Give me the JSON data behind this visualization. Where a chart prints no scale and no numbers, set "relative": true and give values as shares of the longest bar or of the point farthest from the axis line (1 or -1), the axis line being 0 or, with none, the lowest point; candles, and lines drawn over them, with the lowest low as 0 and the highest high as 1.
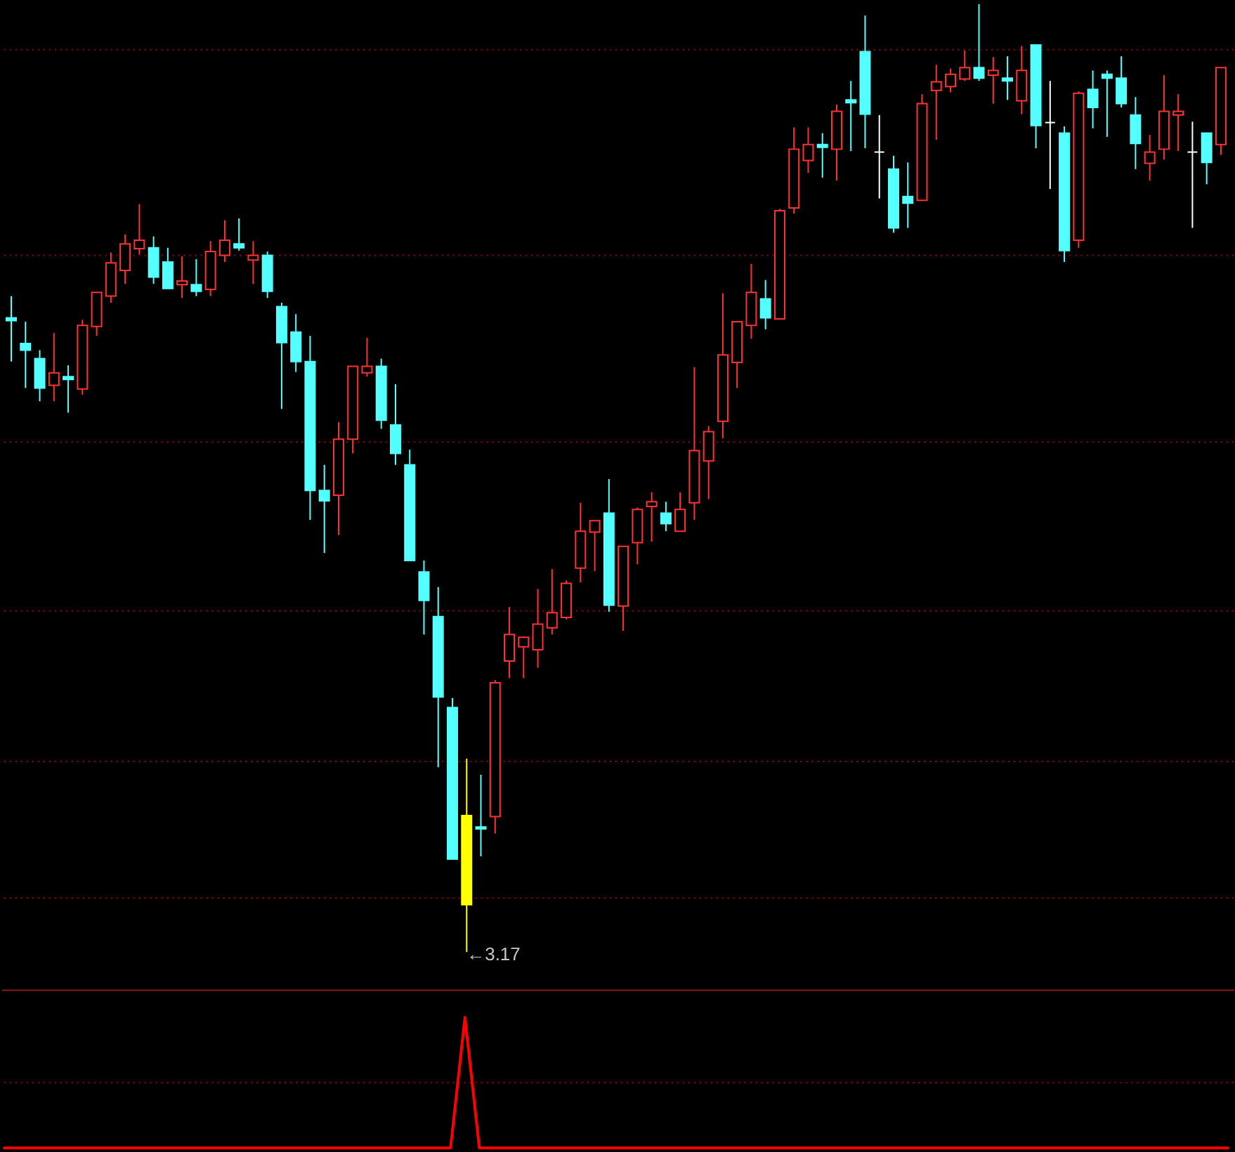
{
  "chart_data": [
    {
      "type": "candlestick",
      "relative": true,
      "categories": [
        null,
        null,
        null,
        null,
        null,
        null,
        null,
        null,
        null,
        null,
        null,
        null,
        null,
        null,
        null,
        null,
        null,
        null,
        null,
        null,
        null,
        null,
        null,
        null,
        null,
        null,
        null,
        null,
        null,
        null,
        null,
        null,
        null,
        null,
        null,
        null,
        null,
        null,
        null,
        null,
        null,
        null,
        null,
        null,
        null,
        null,
        null,
        null,
        null,
        null,
        null,
        null,
        null,
        null,
        null,
        null,
        null,
        null,
        null,
        null,
        null,
        null,
        null,
        null,
        null,
        null,
        null,
        null,
        null,
        null,
        null,
        null,
        null,
        null,
        null,
        null,
        null,
        null,
        null,
        null,
        null,
        null,
        null,
        null,
        null,
        null
      ],
      "ohlc": [
        [
          0.669,
          0.692,
          0.623,
          0.666
        ],
        [
          0.642,
          0.665,
          0.595,
          0.635
        ],
        [
          0.626,
          0.635,
          0.581,
          0.595
        ],
        [
          0.598,
          0.653,
          0.581,
          0.611
        ],
        [
          0.607,
          0.619,
          0.569,
          0.604
        ],
        [
          0.594,
          0.667,
          0.588,
          0.661
        ],
        [
          0.66,
          0.696,
          0.65,
          0.696
        ],
        [
          0.692,
          0.738,
          0.685,
          0.727
        ],
        [
          0.719,
          0.757,
          0.705,
          0.747
        ],
        [
          0.742,
          0.789,
          0.736,
          0.751
        ],
        [
          0.743,
          0.755,
          0.705,
          0.712
        ],
        [
          0.728,
          0.743,
          0.7,
          0.7
        ],
        [
          0.704,
          0.734,
          0.69,
          0.708
        ],
        [
          0.704,
          0.731,
          0.692,
          0.697
        ],
        [
          0.699,
          0.75,
          0.692,
          0.739
        ],
        [
          0.735,
          0.772,
          0.728,
          0.751
        ],
        [
          0.747,
          0.774,
          0.74,
          0.743
        ],
        [
          0.73,
          0.75,
          0.705,
          0.735
        ],
        [
          0.735,
          0.739,
          0.69,
          0.697
        ],
        [
          0.681,
          0.685,
          0.573,
          0.643
        ],
        [
          0.654,
          0.673,
          0.612,
          0.623
        ],
        [
          0.623,
          0.65,
          0.456,
          0.487
        ],
        [
          0.487,
          0.514,
          0.421,
          0.476
        ],
        [
          0.482,
          0.559,
          0.44,
          0.541
        ],
        [
          0.541,
          0.618,
          0.526,
          0.618
        ],
        [
          0.611,
          0.648,
          0.607,
          0.618
        ],
        [
          0.618,
          0.626,
          0.552,
          0.561
        ],
        [
          0.556,
          0.599,
          0.514,
          0.526
        ],
        [
          0.514,
          0.53,
          0.413,
          0.413
        ],
        [
          0.401,
          0.413,
          0.335,
          0.371
        ],
        [
          0.354,
          0.385,
          0.195,
          0.269
        ],
        [
          0.258,
          0.268,
          0.098,
          0.098
        ],
        [
          0.144,
          0.204,
          0,
          0.05
        ],
        [
          0.132,
          0.187,
          0.101,
          0.13
        ],
        [
          0.143,
          0.287,
          0.125,
          0.284
        ],
        [
          0.307,
          0.364,
          0.289,
          0.335
        ],
        [
          0.322,
          0.333,
          0.289,
          0.332
        ],
        [
          0.319,
          0.383,
          0.3,
          0.346
        ],
        [
          0.342,
          0.404,
          0.335,
          0.358
        ],
        [
          0.353,
          0.392,
          0.351,
          0.389
        ],
        [
          0.405,
          0.474,
          0.39,
          0.444
        ],
        [
          0.443,
          0.455,
          0.402,
          0.455
        ],
        [
          0.463,
          0.499,
          0.359,
          0.366
        ],
        [
          0.365,
          0.428,
          0.339,
          0.428
        ],
        [
          0.432,
          0.469,
          0.409,
          0.467
        ],
        [
          0.47,
          0.485,
          0.433,
          0.475
        ],
        [
          0.463,
          0.475,
          0.444,
          0.452
        ],
        [
          0.444,
          0.485,
          0.444,
          0.467
        ],
        [
          0.474,
          0.617,
          0.456,
          0.529
        ],
        [
          0.518,
          0.555,
          0.478,
          0.549
        ],
        [
          0.56,
          0.695,
          0.542,
          0.63
        ],
        [
          0.622,
          0.665,
          0.595,
          0.665
        ],
        [
          0.661,
          0.726,
          0.647,
          0.696
        ],
        [
          0.689,
          0.709,
          0.657,
          0.669
        ],
        [
          0.668,
          0.784,
          0.668,
          0.782
        ],
        [
          0.785,
          0.87,
          0.779,
          0.847
        ],
        [
          0.835,
          0.87,
          0.822,
          0.852
        ],
        [
          0.852,
          0.864,
          0.817,
          0.849
        ],
        [
          0.847,
          0.894,
          0.814,
          0.887
        ],
        [
          0.899,
          0.919,
          0.845,
          0.896
        ],
        [
          0.95,
          0.988,
          0.848,
          0.884
        ],
        [
          0.844,
          0.883,
          0.795,
          0.844
        ],
        [
          0.826,
          0.84,
          0.759,
          0.764
        ],
        [
          0.797,
          0.833,
          0.764,
          0.79
        ],
        [
          0.793,
          0.905,
          0.793,
          0.895
        ],
        [
          0.909,
          0.936,
          0.857,
          0.918
        ],
        [
          0.913,
          0.932,
          0.907,
          0.926
        ],
        [
          0.921,
          0.951,
          0.919,
          0.933
        ],
        [
          0.933,
          1,
          0.919,
          0.922
        ],
        [
          0.925,
          0.944,
          0.895,
          0.93
        ],
        [
          0.922,
          0.945,
          0.899,
          0.919
        ],
        [
          0.898,
          0.956,
          0.884,
          0.93
        ],
        [
          0.957,
          0.957,
          0.848,
          0.872
        ],
        [
          0.875,
          0.919,
          0.805,
          0.875
        ],
        [
          0.864,
          0.871,
          0.728,
          0.74
        ],
        [
          0.751,
          0.908,
          0.743,
          0.906
        ],
        [
          0.91,
          0.93,
          0.869,
          0.891
        ],
        [
          0.926,
          0.93,
          0.86,
          0.922
        ],
        [
          0.922,
          0.945,
          0.891,
          0.895
        ],
        [
          0.883,
          0.902,
          0.826,
          0.853
        ],
        [
          0.832,
          0.862,
          0.814,
          0.844
        ],
        [
          0.847,
          0.925,
          0.836,
          0.887
        ],
        [
          0.883,
          0.905,
          0.845,
          0.887
        ],
        [
          0.844,
          0.876,
          0.764,
          0.844
        ],
        [
          0.864,
          0.864,
          0.81,
          0.833
        ],
        [
          0.852,
          0.933,
          0.841,
          0.933
        ]
      ],
      "colors": [
        "#54ffff",
        "#54ffff",
        "#54ffff",
        "#ff3232",
        "#54ffff",
        "#ff3232",
        "#ff3232",
        "#ff3232",
        "#ff3232",
        "#ff3232",
        "#54ffff",
        "#54ffff",
        "#ff3232",
        "#54ffff",
        "#ff3232",
        "#ff3232",
        "#54ffff",
        "#ff3232",
        "#54ffff",
        "#54ffff",
        "#54ffff",
        "#54ffff",
        "#54ffff",
        "#ff3232",
        "#ff3232",
        "#ff3232",
        "#54ffff",
        "#54ffff",
        "#54ffff",
        "#54ffff",
        "#54ffff",
        "#54ffff",
        "#ffff00",
        "#54ffff",
        "#ff3232",
        "#ff3232",
        "#ff3232",
        "#ff3232",
        "#ff3232",
        "#ff3232",
        "#ff3232",
        "#ff3232",
        "#54ffff",
        "#ff3232",
        "#ff3232",
        "#ff3232",
        "#54ffff",
        "#ff3232",
        "#ff3232",
        "#ff3232",
        "#ff3232",
        "#ff3232",
        "#ff3232",
        "#54ffff",
        "#ff3232",
        "#ff3232",
        "#ff3232",
        "#54ffff",
        "#ff3232",
        "#54ffff",
        "#54ffff",
        "#ffffff",
        "#54ffff",
        "#54ffff",
        "#ff3232",
        "#ff3232",
        "#ff3232",
        "#ff3232",
        "#54ffff",
        "#ff3232",
        "#54ffff",
        "#ff3232",
        "#54ffff",
        "#ffffff",
        "#54ffff",
        "#ff3232",
        "#54ffff",
        "#54ffff",
        "#54ffff",
        "#54ffff",
        "#ff3232",
        "#ff3232",
        "#ff3232",
        "#ffffff",
        "#54ffff",
        "#ff3232"
      ],
      "ref_lines": [
        {
          "axis": "y",
          "value": 0.952,
          "color": "#a00000",
          "line_style": "dotted"
        },
        {
          "axis": "y",
          "value": 0.735,
          "color": "#a00000",
          "line_style": "dotted"
        },
        {
          "axis": "y",
          "value": 0.538,
          "color": "#a00000",
          "line_style": "dotted"
        },
        {
          "axis": "y",
          "value": 0.36,
          "color": "#a00000",
          "line_style": "dotted"
        },
        {
          "axis": "y",
          "value": 0.201,
          "color": "#a00000",
          "line_style": "dotted"
        },
        {
          "axis": "y",
          "value": 0.057,
          "color": "#a00000",
          "line_style": "dotted"
        }
      ],
      "annotations": [
        "←3.17"
      ]
    },
    {
      "type": "line",
      "relative": true,
      "color": "#ff0000",
      "categories": [
        null,
        null,
        null,
        null,
        null,
        null,
        null,
        null,
        null,
        null,
        null,
        null,
        null,
        null,
        null,
        null,
        null,
        null,
        null,
        null,
        null,
        null,
        null,
        null,
        null,
        null,
        null,
        null,
        null,
        null,
        null,
        null,
        null,
        null,
        null,
        null,
        null,
        null,
        null,
        null,
        null,
        null,
        null,
        null,
        null,
        null,
        null,
        null,
        null,
        null,
        null,
        null,
        null,
        null,
        null,
        null,
        null,
        null,
        null,
        null,
        null,
        null,
        null,
        null,
        null,
        null,
        null,
        null,
        null,
        null,
        null,
        null,
        null,
        null,
        null,
        null,
        null,
        null,
        null,
        null,
        null,
        null,
        null,
        null,
        null,
        null
      ],
      "values": [
        0,
        0,
        0,
        0,
        0,
        0,
        0,
        0,
        0,
        0,
        0,
        0,
        0,
        0,
        0,
        0,
        0,
        0,
        0,
        0,
        0,
        0,
        0,
        0,
        0,
        0,
        0,
        0,
        0,
        0,
        0,
        0,
        1,
        0,
        0,
        0,
        0,
        0,
        0,
        0,
        0,
        0,
        0,
        0,
        0,
        0,
        0,
        0,
        0,
        0,
        0,
        0,
        0,
        0,
        0,
        0,
        0,
        0,
        0,
        0,
        0,
        0,
        0,
        0,
        0,
        0,
        0,
        0,
        0,
        0,
        0,
        0,
        0,
        0,
        0,
        0,
        0,
        0,
        0,
        0,
        0,
        0,
        0,
        0,
        0,
        0
      ],
      "ref_lines": [
        {
          "axis": "y",
          "value": 0.5,
          "color": "#a00000",
          "line_style": "dotted"
        }
      ]
    }
  ]
}
